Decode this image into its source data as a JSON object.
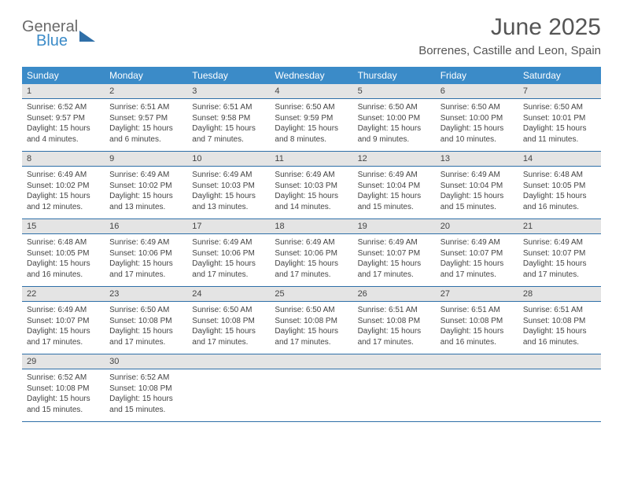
{
  "logo": {
    "line1": "General",
    "line2": "Blue"
  },
  "title": "June 2025",
  "location": "Borrenes, Castille and Leon, Spain",
  "colors": {
    "header_bg": "#3b8bc8",
    "header_text": "#ffffff",
    "daynum_bg": "#e4e4e4",
    "rule": "#2f6fa8",
    "text": "#444444",
    "title_text": "#555555"
  },
  "daysOfWeek": [
    "Sunday",
    "Monday",
    "Tuesday",
    "Wednesday",
    "Thursday",
    "Friday",
    "Saturday"
  ],
  "weeks": [
    [
      {
        "n": "1",
        "sr": "6:52 AM",
        "ss": "9:57 PM",
        "dl": "15 hours and 4 minutes."
      },
      {
        "n": "2",
        "sr": "6:51 AM",
        "ss": "9:57 PM",
        "dl": "15 hours and 6 minutes."
      },
      {
        "n": "3",
        "sr": "6:51 AM",
        "ss": "9:58 PM",
        "dl": "15 hours and 7 minutes."
      },
      {
        "n": "4",
        "sr": "6:50 AM",
        "ss": "9:59 PM",
        "dl": "15 hours and 8 minutes."
      },
      {
        "n": "5",
        "sr": "6:50 AM",
        "ss": "10:00 PM",
        "dl": "15 hours and 9 minutes."
      },
      {
        "n": "6",
        "sr": "6:50 AM",
        "ss": "10:00 PM",
        "dl": "15 hours and 10 minutes."
      },
      {
        "n": "7",
        "sr": "6:50 AM",
        "ss": "10:01 PM",
        "dl": "15 hours and 11 minutes."
      }
    ],
    [
      {
        "n": "8",
        "sr": "6:49 AM",
        "ss": "10:02 PM",
        "dl": "15 hours and 12 minutes."
      },
      {
        "n": "9",
        "sr": "6:49 AM",
        "ss": "10:02 PM",
        "dl": "15 hours and 13 minutes."
      },
      {
        "n": "10",
        "sr": "6:49 AM",
        "ss": "10:03 PM",
        "dl": "15 hours and 13 minutes."
      },
      {
        "n": "11",
        "sr": "6:49 AM",
        "ss": "10:03 PM",
        "dl": "15 hours and 14 minutes."
      },
      {
        "n": "12",
        "sr": "6:49 AM",
        "ss": "10:04 PM",
        "dl": "15 hours and 15 minutes."
      },
      {
        "n": "13",
        "sr": "6:49 AM",
        "ss": "10:04 PM",
        "dl": "15 hours and 15 minutes."
      },
      {
        "n": "14",
        "sr": "6:48 AM",
        "ss": "10:05 PM",
        "dl": "15 hours and 16 minutes."
      }
    ],
    [
      {
        "n": "15",
        "sr": "6:48 AM",
        "ss": "10:05 PM",
        "dl": "15 hours and 16 minutes."
      },
      {
        "n": "16",
        "sr": "6:49 AM",
        "ss": "10:06 PM",
        "dl": "15 hours and 17 minutes."
      },
      {
        "n": "17",
        "sr": "6:49 AM",
        "ss": "10:06 PM",
        "dl": "15 hours and 17 minutes."
      },
      {
        "n": "18",
        "sr": "6:49 AM",
        "ss": "10:06 PM",
        "dl": "15 hours and 17 minutes."
      },
      {
        "n": "19",
        "sr": "6:49 AM",
        "ss": "10:07 PM",
        "dl": "15 hours and 17 minutes."
      },
      {
        "n": "20",
        "sr": "6:49 AM",
        "ss": "10:07 PM",
        "dl": "15 hours and 17 minutes."
      },
      {
        "n": "21",
        "sr": "6:49 AM",
        "ss": "10:07 PM",
        "dl": "15 hours and 17 minutes."
      }
    ],
    [
      {
        "n": "22",
        "sr": "6:49 AM",
        "ss": "10:07 PM",
        "dl": "15 hours and 17 minutes."
      },
      {
        "n": "23",
        "sr": "6:50 AM",
        "ss": "10:08 PM",
        "dl": "15 hours and 17 minutes."
      },
      {
        "n": "24",
        "sr": "6:50 AM",
        "ss": "10:08 PM",
        "dl": "15 hours and 17 minutes."
      },
      {
        "n": "25",
        "sr": "6:50 AM",
        "ss": "10:08 PM",
        "dl": "15 hours and 17 minutes."
      },
      {
        "n": "26",
        "sr": "6:51 AM",
        "ss": "10:08 PM",
        "dl": "15 hours and 17 minutes."
      },
      {
        "n": "27",
        "sr": "6:51 AM",
        "ss": "10:08 PM",
        "dl": "15 hours and 16 minutes."
      },
      {
        "n": "28",
        "sr": "6:51 AM",
        "ss": "10:08 PM",
        "dl": "15 hours and 16 minutes."
      }
    ],
    [
      {
        "n": "29",
        "sr": "6:52 AM",
        "ss": "10:08 PM",
        "dl": "15 hours and 15 minutes."
      },
      {
        "n": "30",
        "sr": "6:52 AM",
        "ss": "10:08 PM",
        "dl": "15 hours and 15 minutes."
      },
      null,
      null,
      null,
      null,
      null
    ]
  ],
  "labels": {
    "sunrise": "Sunrise:",
    "sunset": "Sunset:",
    "daylight": "Daylight:"
  }
}
